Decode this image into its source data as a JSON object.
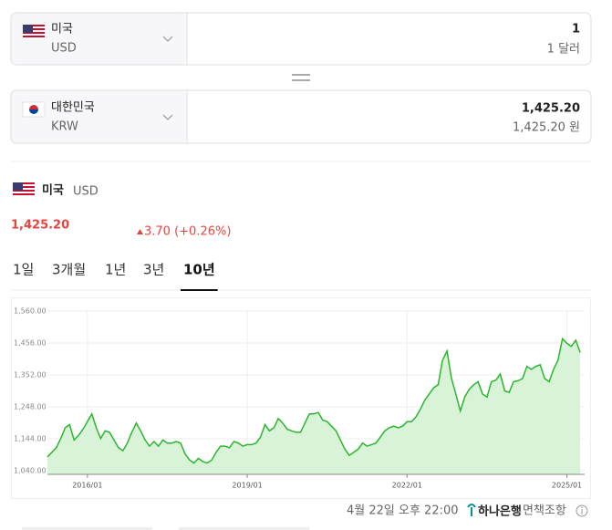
{
  "converter": {
    "from": {
      "country": "미국",
      "code": "USD",
      "amount": "1",
      "amount_label": "1 달러"
    },
    "to": {
      "country": "대한민국",
      "code": "KRW",
      "amount": "1,425.20",
      "amount_label": "1,425.20 원"
    }
  },
  "summary": {
    "country": "미국",
    "code": "USD",
    "rate": "1,425.20",
    "change": "3.70 (+0.26%)"
  },
  "tabs": {
    "items": [
      "1일",
      "3개월",
      "1년",
      "3년",
      "10년"
    ],
    "active": 4
  },
  "chart_data": {
    "type": "line",
    "color": "#2cb52f",
    "fill": "#d8f3d8",
    "grid": true,
    "x": [
      "2015/04",
      "2015/05",
      "2015/06",
      "2015/07",
      "2015/08",
      "2015/09",
      "2015/10",
      "2015/11",
      "2015/12",
      "2016/01",
      "2016/02",
      "2016/03",
      "2016/04",
      "2016/05",
      "2016/06",
      "2016/07",
      "2016/08",
      "2016/09",
      "2016/10",
      "2016/11",
      "2016/12",
      "2017/01",
      "2017/02",
      "2017/03",
      "2017/04",
      "2017/05",
      "2017/06",
      "2017/07",
      "2017/08",
      "2017/09",
      "2017/10",
      "2017/11",
      "2017/12",
      "2018/01",
      "2018/02",
      "2018/03",
      "2018/04",
      "2018/05",
      "2018/06",
      "2018/07",
      "2018/08",
      "2018/09",
      "2018/10",
      "2018/11",
      "2018/12",
      "2019/01",
      "2019/02",
      "2019/03",
      "2019/04",
      "2019/05",
      "2019/06",
      "2019/07",
      "2019/08",
      "2019/09",
      "2019/10",
      "2019/11",
      "2019/12",
      "2020/01",
      "2020/02",
      "2020/03",
      "2020/04",
      "2020/05",
      "2020/06",
      "2020/07",
      "2020/08",
      "2020/09",
      "2020/10",
      "2020/11",
      "2020/12",
      "2021/01",
      "2021/02",
      "2021/03",
      "2021/04",
      "2021/05",
      "2021/06",
      "2021/07",
      "2021/08",
      "2021/09",
      "2021/10",
      "2021/11",
      "2021/12",
      "2022/01",
      "2022/02",
      "2022/03",
      "2022/04",
      "2022/05",
      "2022/06",
      "2022/07",
      "2022/08",
      "2022/09",
      "2022/10",
      "2022/11",
      "2022/12",
      "2023/01",
      "2023/02",
      "2023/03",
      "2023/04",
      "2023/05",
      "2023/06",
      "2023/07",
      "2023/08",
      "2023/09",
      "2023/10",
      "2023/11",
      "2023/12",
      "2024/01",
      "2024/02",
      "2024/03",
      "2024/04",
      "2024/05",
      "2024/06",
      "2024/07",
      "2024/08",
      "2024/09",
      "2024/10",
      "2024/11",
      "2024/12",
      "2025/01",
      "2025/02",
      "2025/03",
      "2025/04"
    ],
    "values": [
      1085,
      1100,
      1115,
      1145,
      1180,
      1190,
      1140,
      1155,
      1175,
      1200,
      1225,
      1180,
      1145,
      1170,
      1165,
      1140,
      1115,
      1105,
      1130,
      1165,
      1195,
      1170,
      1140,
      1120,
      1135,
      1120,
      1140,
      1130,
      1130,
      1135,
      1130,
      1095,
      1075,
      1065,
      1080,
      1070,
      1065,
      1075,
      1100,
      1120,
      1120,
      1115,
      1135,
      1130,
      1120,
      1125,
      1125,
      1130,
      1150,
      1190,
      1170,
      1180,
      1210,
      1195,
      1175,
      1170,
      1165,
      1165,
      1195,
      1225,
      1225,
      1230,
      1205,
      1200,
      1185,
      1170,
      1140,
      1110,
      1090,
      1100,
      1110,
      1130,
      1120,
      1125,
      1130,
      1150,
      1170,
      1180,
      1185,
      1180,
      1185,
      1200,
      1200,
      1215,
      1240,
      1270,
      1290,
      1310,
      1320,
      1400,
      1430,
      1340,
      1290,
      1235,
      1280,
      1305,
      1320,
      1330,
      1290,
      1280,
      1330,
      1335,
      1355,
      1300,
      1295,
      1330,
      1333,
      1340,
      1380,
      1370,
      1380,
      1385,
      1340,
      1330,
      1370,
      1400,
      1470,
      1455,
      1445,
      1465,
      1425
    ],
    "xlim": [
      "2015/04",
      "2025/05"
    ],
    "xticks": [
      "2016/01",
      "2019/01",
      "2022/01",
      "2025/01"
    ],
    "ylim": [
      1040,
      1560
    ],
    "yticks": [
      {
        "value": 1040,
        "label": "1,040.00"
      },
      {
        "value": 1144,
        "label": "1,144.00"
      },
      {
        "value": 1248,
        "label": "1,248.00"
      },
      {
        "value": 1352,
        "label": "1,352.00"
      },
      {
        "value": 1456,
        "label": "1,456.00"
      },
      {
        "value": 1560,
        "label": "1,560.00"
      }
    ]
  },
  "footer": {
    "time": "4월 22일 오후 22:00",
    "bank": "하나은행",
    "disclaimer": "면책조항"
  }
}
